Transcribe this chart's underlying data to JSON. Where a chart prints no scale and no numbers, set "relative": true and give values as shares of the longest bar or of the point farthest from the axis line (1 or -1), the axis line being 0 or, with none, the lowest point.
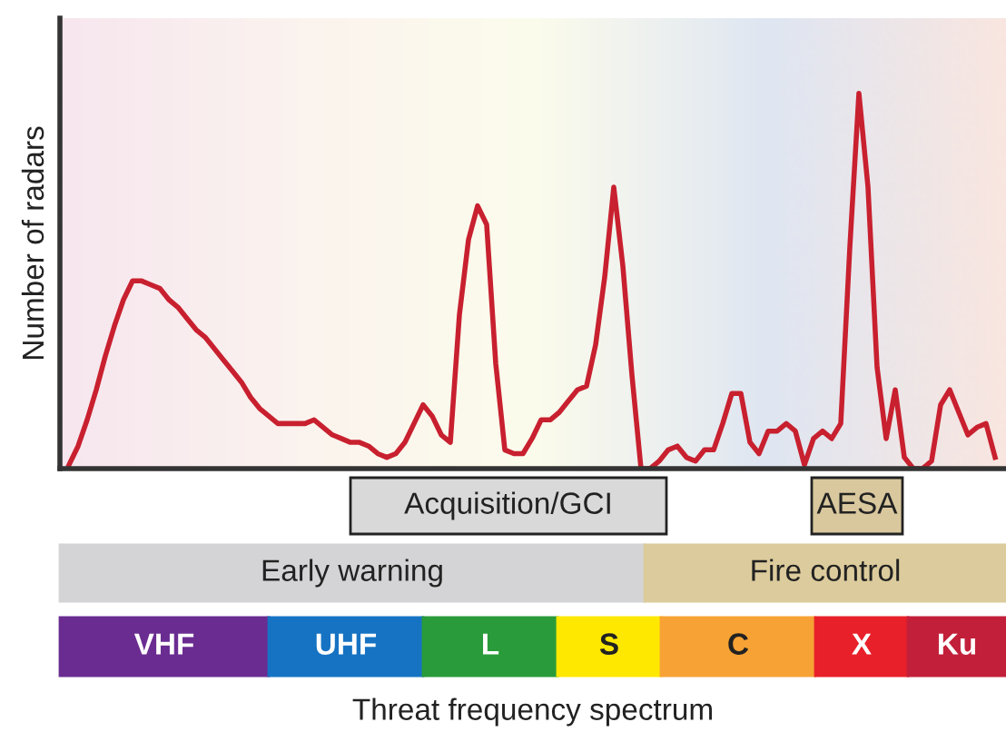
{
  "chart_data": {
    "type": "line",
    "relative": true,
    "ylabel": "Number of radars",
    "categories": [
      null,
      null,
      null,
      null,
      null,
      null,
      null,
      null,
      null,
      null,
      null,
      null,
      null,
      null,
      null,
      null,
      null,
      null,
      null,
      null,
      null,
      null,
      null,
      null,
      null,
      null,
      null,
      null,
      null,
      null,
      null,
      null,
      null,
      null,
      null,
      null,
      null,
      null,
      null,
      null,
      null,
      null,
      null,
      null,
      null,
      null,
      null,
      null,
      null,
      null,
      null,
      null,
      null,
      null,
      null,
      null,
      null,
      null,
      null,
      null,
      null,
      null,
      null,
      null,
      null,
      null,
      null,
      null,
      null,
      null,
      null,
      null,
      null,
      null,
      null,
      null,
      null,
      null,
      null,
      null,
      null,
      null,
      null,
      null,
      null,
      null,
      null,
      null,
      null,
      null,
      null,
      null,
      null,
      null,
      null,
      null,
      null,
      null,
      null,
      null,
      null,
      null,
      null
    ],
    "series": [
      {
        "color": "#c8202f",
        "values": [
          0.01,
          0.06,
          0.13,
          0.21,
          0.3,
          0.38,
          0.45,
          0.5,
          0.5,
          0.49,
          0.48,
          0.45,
          0.43,
          0.4,
          0.37,
          0.35,
          0.32,
          0.29,
          0.26,
          0.23,
          0.19,
          0.16,
          0.14,
          0.12,
          0.12,
          0.12,
          0.12,
          0.13,
          0.11,
          0.09,
          0.08,
          0.07,
          0.07,
          0.06,
          0.04,
          0.03,
          0.04,
          0.07,
          0.12,
          0.17,
          0.14,
          0.09,
          0.07,
          0.41,
          0.61,
          0.7,
          0.65,
          0.28,
          0.05,
          0.04,
          0.04,
          0.08,
          0.13,
          0.13,
          0.15,
          0.18,
          0.21,
          0.22,
          0.33,
          0.51,
          0.75,
          0.54,
          0.25,
          0.0,
          0.0,
          0.02,
          0.05,
          0.06,
          0.03,
          0.02,
          0.05,
          0.05,
          0.12,
          0.2,
          0.2,
          0.07,
          0.04,
          0.1,
          0.1,
          0.12,
          0.1,
          0.01,
          0.08,
          0.1,
          0.08,
          0.12,
          0.59,
          1.0,
          0.75,
          0.27,
          0.08,
          0.21,
          0.03,
          0.0,
          0.0,
          0.02,
          0.17,
          0.21,
          0.15,
          0.09,
          0.11,
          0.12,
          0.03
        ]
      }
    ],
    "annotations": [
      "Acquisition/GCI",
      "AESA",
      "Early warning",
      "Fire control",
      "VHF",
      "UHF",
      "L",
      "S",
      "C",
      "X",
      "Ku",
      "Threat frequency spectrum"
    ]
  }
}
